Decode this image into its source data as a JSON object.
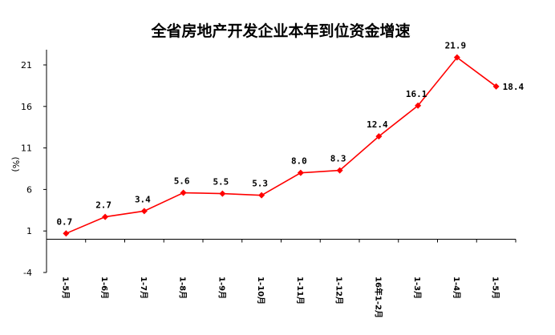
{
  "chart_data": {
    "type": "line",
    "title": "全省房地产开发企业本年到位资金增速",
    "ylabel": "(%)",
    "xlabel": "",
    "categories": [
      "1-5月",
      "1-6月",
      "1-7月",
      "1-8月",
      "1-9月",
      "1-10月",
      "1-11月",
      "1-12月",
      "16年1-2月",
      "1-3月",
      "1-4月",
      "1-5月"
    ],
    "series": [
      {
        "values": [
          0.7,
          2.7,
          3.4,
          5.6,
          5.5,
          5.3,
          8.0,
          8.3,
          12.4,
          16.1,
          21.9,
          18.4
        ],
        "labels": [
          "0.7",
          "2.7",
          "3.4",
          "5.6",
          "5.5",
          "5.3",
          "8.0",
          "8.3",
          "12.4",
          "16.1",
          "21.9",
          "18.4"
        ],
        "color": "#ff0000"
      }
    ],
    "ylim": [
      -4,
      21
    ],
    "yticks": [
      21,
      16,
      11,
      6,
      1,
      -4
    ],
    "grid": false,
    "legend": "none"
  }
}
